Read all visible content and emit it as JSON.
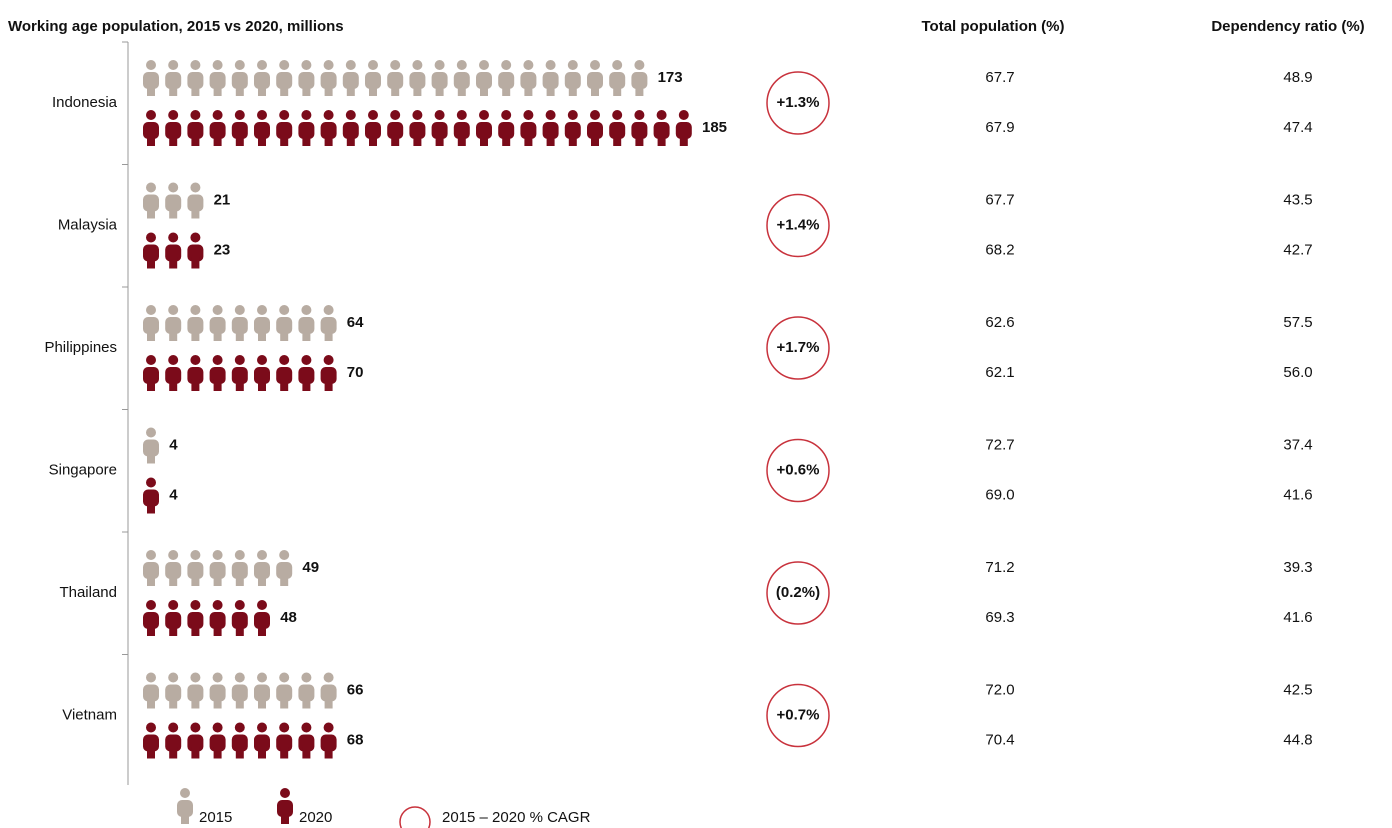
{
  "chart_data": {
    "type": "pictogram",
    "title": "Working age population, 2015 vs 2020, millions",
    "categories": [
      "Indonesia",
      "Malaysia",
      "Philippines",
      "Singapore",
      "Thailand",
      "Vietnam"
    ],
    "series": [
      {
        "name": "2015",
        "color": "#b8aca2",
        "values": [
          173,
          21,
          64,
          4,
          49,
          66
        ]
      },
      {
        "name": "2020",
        "color": "#7b0b1a",
        "values": [
          185,
          23,
          70,
          4,
          48,
          68
        ]
      }
    ],
    "cagr": {
      "name": "2015 – 2020 % CAGR",
      "color": "#c8323c",
      "values": [
        1.3,
        1.4,
        1.7,
        0.6,
        -0.2,
        0.7
      ],
      "value_labels": [
        "+1.3%",
        "+1.4%",
        "+1.7%",
        "+0.6%",
        "(0.2%)",
        "+0.7%"
      ]
    },
    "columns": [
      {
        "title": "Total population (%)",
        "rows": [
          [
            "67.7",
            "67.9"
          ],
          [
            "67.7",
            "68.2"
          ],
          [
            "62.6",
            "62.1"
          ],
          [
            "72.7",
            "69.0"
          ],
          [
            "71.2",
            "69.3"
          ],
          [
            "72.0",
            "70.4"
          ]
        ]
      },
      {
        "title": "Dependency ratio (%)",
        "rows": [
          [
            "48.9",
            "47.4"
          ],
          [
            "43.5",
            "42.7"
          ],
          [
            "57.5",
            "56.0"
          ],
          [
            "37.4",
            "41.6"
          ],
          [
            "39.3",
            "41.6"
          ],
          [
            "42.5",
            "44.8"
          ]
        ]
      }
    ]
  }
}
